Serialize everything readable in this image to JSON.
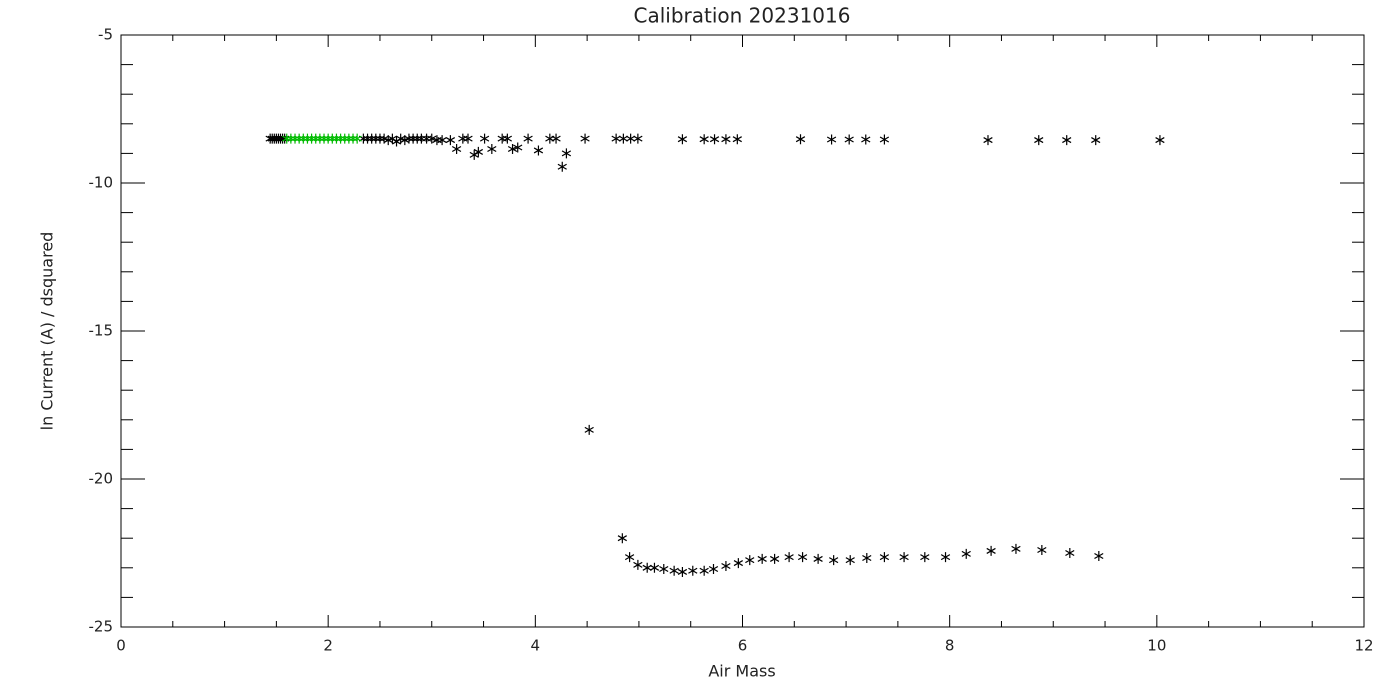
{
  "chart_data": {
    "type": "scatter",
    "title": "Calibration 20231016",
    "x_label": "Air Mass",
    "y_label": "ln Current (A) / dsquared",
    "xlim": [
      0,
      12
    ],
    "xticks": [
      0,
      2,
      4,
      6,
      8,
      10,
      12
    ],
    "xminor": 4,
    "ylim": [
      -25,
      -5
    ],
    "yticks": [
      -25,
      -20,
      -15,
      -10,
      -5
    ],
    "yminor": 5,
    "marker": "asterisk",
    "series": [
      {
        "color": "#000000",
        "x": [
          1.44,
          1.46,
          1.48,
          1.5,
          1.52,
          1.54,
          1.56,
          1.58,
          2.34,
          2.38,
          2.42,
          2.46,
          2.5,
          2.54,
          2.58,
          2.62,
          2.66,
          2.7,
          2.74,
          2.78,
          2.82,
          2.86,
          2.9,
          2.95,
          3.0,
          3.05,
          3.1,
          3.18,
          3.24,
          3.3,
          3.35,
          3.41,
          3.45,
          3.51,
          3.58,
          3.68,
          3.73,
          3.78,
          3.83,
          3.93,
          4.03,
          4.14,
          4.2,
          4.26,
          4.3,
          4.48,
          4.78,
          4.85,
          4.92,
          4.99,
          5.42,
          5.63,
          5.73,
          5.84,
          5.95,
          6.56,
          6.86,
          7.03,
          7.19,
          7.37,
          8.37,
          8.86,
          9.13,
          9.41,
          10.03,
          4.52,
          4.84,
          4.91,
          4.99,
          5.08,
          5.15,
          5.24,
          5.34,
          5.42,
          5.52,
          5.63,
          5.72,
          5.84,
          5.96,
          6.07,
          6.19,
          6.31,
          6.45,
          6.58,
          6.73,
          6.88,
          7.04,
          7.2,
          7.37,
          7.56,
          7.76,
          7.96,
          8.16,
          8.4,
          8.64,
          8.89,
          9.16,
          9.44
        ],
        "values": [
          -8.5,
          -8.5,
          -8.5,
          -8.5,
          -8.5,
          -8.5,
          -8.5,
          -8.5,
          -8.5,
          -8.5,
          -8.5,
          -8.5,
          -8.5,
          -8.5,
          -8.55,
          -8.5,
          -8.6,
          -8.5,
          -8.55,
          -8.5,
          -8.5,
          -8.5,
          -8.5,
          -8.5,
          -8.5,
          -8.55,
          -8.55,
          -8.55,
          -8.85,
          -8.5,
          -8.5,
          -9.05,
          -8.95,
          -8.5,
          -8.85,
          -8.5,
          -8.5,
          -8.85,
          -8.8,
          -8.5,
          -8.9,
          -8.5,
          -8.5,
          -9.45,
          -9.0,
          -8.5,
          -8.5,
          -8.5,
          -8.5,
          -8.5,
          -8.52,
          -8.52,
          -8.52,
          -8.52,
          -8.52,
          -8.52,
          -8.53,
          -8.53,
          -8.53,
          -8.53,
          -8.55,
          -8.55,
          -8.55,
          -8.55,
          -8.55,
          -18.34,
          -22.0,
          -22.64,
          -22.9,
          -23.0,
          -23.0,
          -23.04,
          -23.1,
          -23.14,
          -23.1,
          -23.1,
          -23.04,
          -22.94,
          -22.84,
          -22.74,
          -22.7,
          -22.7,
          -22.64,
          -22.64,
          -22.7,
          -22.74,
          -22.74,
          -22.67,
          -22.64,
          -22.64,
          -22.64,
          -22.64,
          -22.53,
          -22.43,
          -22.36,
          -22.4,
          -22.5,
          -22.6
        ]
      },
      {
        "color": "#00bb00",
        "x": [
          1.6,
          1.64,
          1.68,
          1.72,
          1.76,
          1.8,
          1.84,
          1.88,
          1.92,
          1.96,
          2.0,
          2.04,
          2.08,
          2.12,
          2.16,
          2.2,
          2.24,
          2.28
        ],
        "values": [
          -8.5,
          -8.5,
          -8.5,
          -8.5,
          -8.5,
          -8.5,
          -8.5,
          -8.5,
          -8.5,
          -8.5,
          -8.5,
          -8.5,
          -8.5,
          -8.5,
          -8.5,
          -8.5,
          -8.5,
          -8.5
        ]
      }
    ]
  }
}
